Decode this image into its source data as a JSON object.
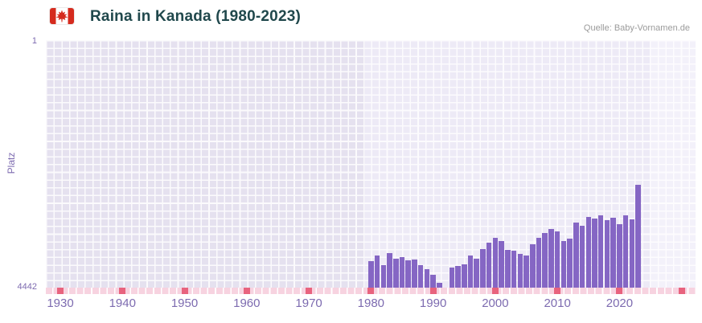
{
  "header": {
    "title": "Raina in Kanada (1980-2023)",
    "source": "Quelle: Baby-Vornamen.de",
    "flag_icon": "canada-flag-icon"
  },
  "axes": {
    "y_label": "Platz",
    "y_top": "1",
    "y_bottom": "4442",
    "x_ticks": [
      "1930",
      "1940",
      "1950",
      "1960",
      "1970",
      "1980",
      "1990",
      "2000",
      "2010",
      "2020"
    ],
    "decade_markers": [
      1930,
      1940,
      1950,
      1960,
      1970,
      1980,
      1990,
      2000,
      2010,
      2020,
      2030
    ]
  },
  "chart_data": {
    "type": "bar",
    "title": "Raina in Kanada (1980-2023)",
    "xlabel": "",
    "ylabel": "Platz",
    "y_axis": {
      "min": 1,
      "max": 4442,
      "inverted": true,
      "note_top_is_best_rank": true
    },
    "x_range": [
      1928,
      2032
    ],
    "grid": true,
    "legend": false,
    "years": [
      1980,
      1981,
      1982,
      1983,
      1984,
      1985,
      1986,
      1987,
      1988,
      1989,
      1990,
      1991,
      1992,
      1993,
      1994,
      1995,
      1996,
      1997,
      1998,
      1999,
      2000,
      2001,
      2002,
      2003,
      2004,
      2005,
      2006,
      2007,
      2008,
      2009,
      2010,
      2011,
      2012,
      2013,
      2014,
      2015,
      2016,
      2017,
      2018,
      2019,
      2020,
      2021,
      2022,
      2023
    ],
    "ranks": [
      3970,
      3860,
      4040,
      3820,
      3920,
      3890,
      3950,
      3940,
      4040,
      4110,
      4210,
      4350,
      null,
      4080,
      4050,
      4020,
      3870,
      3920,
      3750,
      3630,
      3550,
      3600,
      3760,
      3780,
      3840,
      3860,
      3660,
      3550,
      3460,
      3390,
      3430,
      3600,
      3560,
      3270,
      3330,
      3170,
      3200,
      3140,
      3230,
      3190,
      3300,
      3140,
      3210,
      2600
    ]
  },
  "colors": {
    "bar": "#8566c4",
    "band_left": "#e5e1ef",
    "band_mid": "#edeaf6",
    "band_right": "#f3f1fa",
    "tick": "#7d6bb0",
    "title": "#20484c",
    "source": "#9b9b9b",
    "strip_pink": "#f7d3e0",
    "strip_red": "#e8637e",
    "flag_red": "#d52b1e"
  }
}
